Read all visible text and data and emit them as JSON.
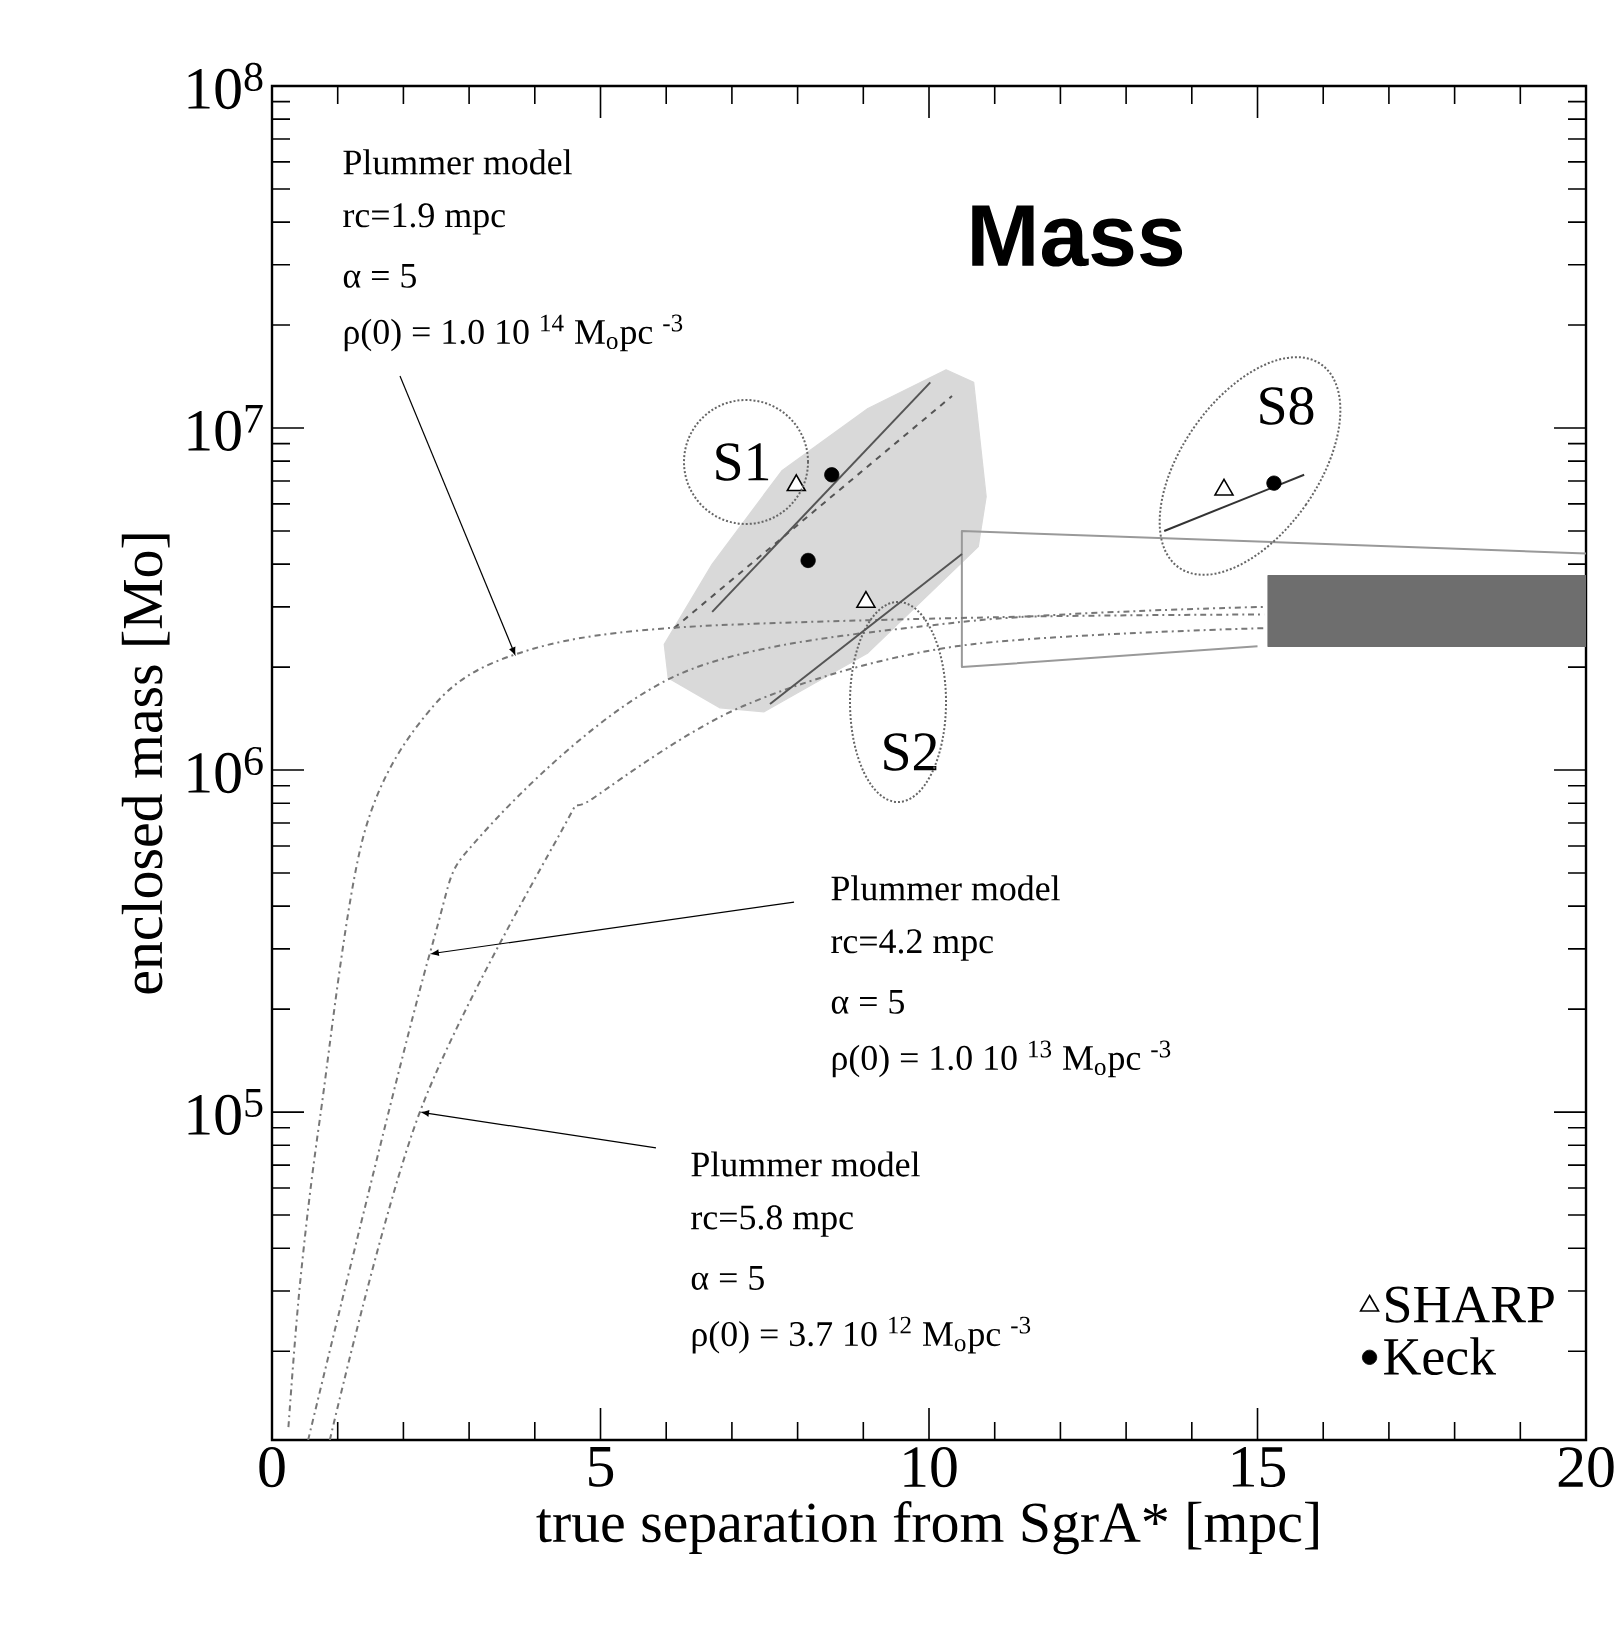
{
  "chart_data": {
    "type": "line",
    "title": "Mass",
    "xlabel": "true separation from SgrA* [mpc]",
    "ylabel": "enclosed mass [Mo]",
    "xlim": [
      0,
      20
    ],
    "xticks": [
      0,
      5,
      10,
      15,
      20
    ],
    "ylim": [
      11000,
      100000000
    ],
    "yticks": [
      {
        "value": 100000,
        "label": "10$^{5}$"
      },
      {
        "value": 1000000,
        "label": "10$^{6}$"
      },
      {
        "value": 10000000,
        "label": "10$^{7}$"
      },
      {
        "value": 100000000,
        "label": "10$^{8}$"
      }
    ],
    "log": "y",
    "grid": false,
    "legend": "bottom right",
    "series": [
      {
        "type": "area",
        "color": "#d9d9d9",
        "x": [
          5.97,
          6.7,
          7.76,
          9.07,
          10.26,
          10.68,
          10.87,
          10.75,
          9.07,
          7.49,
          6.82,
          6.03
        ],
        "values": [
          2330000,
          4000000,
          7500000,
          11400000,
          14800000,
          13600000,
          6300000,
          4500000,
          2200000,
          1480000,
          1520000,
          1860000
        ]
      },
      {
        "color": "#555555",
        "line_style": "dashed",
        "x": [
          6.12,
          10.35
        ],
        "values": [
          2600000,
          12400000
        ]
      },
      {
        "color": "#555555",
        "line_style": "solid",
        "x": [
          6.7,
          10.02
        ],
        "values": [
          2900000,
          13600000
        ]
      },
      {
        "color": "#999999",
        "line_style": "solid",
        "x": [
          20,
          10.5,
          10.5,
          15.0
        ],
        "values": [
          4300000,
          5000000,
          2000000,
          2300000
        ]
      },
      {
        "type": "area",
        "color": "#6e6e6e",
        "x": [
          15.16,
          20,
          20,
          15.16
        ],
        "values": [
          3700000,
          3700000,
          2300000,
          2300000
        ]
      },
      {
        "color": "#777777",
        "line_style": "dashdot",
        "x": [
          0.25,
          0.43,
          0.73,
          1.4,
          2.47,
          3.77,
          6.03,
          11.08,
          15.1
        ],
        "values": [
          12000,
          32000,
          96000,
          650000,
          1550000,
          2200000,
          2600000,
          2800000,
          2850000
        ]
      },
      {
        "color": "#777777",
        "line_style": "dashdot",
        "x": [
          0.55,
          2.4,
          3.2,
          6.18,
          10.41,
          15.1
        ],
        "values": [
          11000,
          290000,
          650000,
          1900000,
          2700000,
          3000000
        ]
      },
      {
        "color": "#777777",
        "line_style": "dashdot",
        "x": [
          0.88,
          2.25,
          4.38,
          4.9,
          7.21,
          10.41,
          15.1
        ],
        "values": [
          11000,
          100000,
          650000,
          830000,
          1550000,
          2300000,
          2600000
        ]
      },
      {
        "color": "#333333",
        "line_style": "solid",
        "x": [
          13.58,
          15.71
        ],
        "values": [
          5000000,
          7300000
        ]
      },
      {
        "type": "scatter",
        "name": "SHARP",
        "color": "#000000",
        "marker": "triangle",
        "x": [
          7.98,
          9.04,
          14.49
        ],
        "values": [
          6800000,
          3100000,
          6600000
        ]
      },
      {
        "type": "scatter",
        "name": "Keck",
        "color": "#000000",
        "marker": "circle",
        "x": [
          8.52,
          8.16,
          15.25
        ],
        "values": [
          7300000,
          4100000,
          6900000
        ]
      }
    ],
    "annotations": [
      "Plummer model",
      "rc=1.9 mpc",
      "α = 5",
      {
        "text": "ρ(0) = 1.0 10 $^{14}$ M$_{o}$pc $^{-3}$",
        "x": 3.71,
        "y": 2150000
      },
      {
        "text": "Plummer model",
        "x": 2.4,
        "y": 290000
      },
      "rc=4.2 mpc",
      "α = 5",
      "ρ(0) = 1.0 10 $^{13}$ M$_{o}$pc $^{-3}$",
      {
        "text": "Plummer model",
        "x": 2.25,
        "y": 100000
      },
      "rc=5.8 mpc",
      "α = 5",
      "ρ(0) = 3.7 10 $^{12}$ M$_{o}$pc $^{-3}$",
      "S1",
      "S2",
      "S8"
    ]
  }
}
